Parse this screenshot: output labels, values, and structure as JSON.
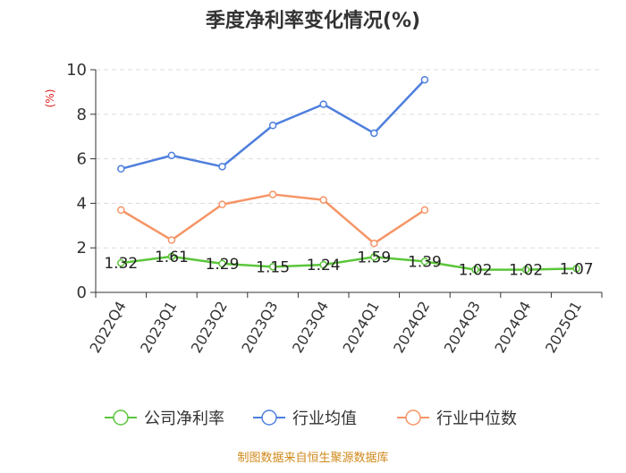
{
  "colors": {
    "company": "#5bc63b",
    "industry_avg": "#4e7fdd",
    "industry_median": "#f59566",
    "grid": "#dddddd",
    "axis": "#333333",
    "unit": "#e02020",
    "source": "#d0891a"
  },
  "chart_data": {
    "type": "line",
    "title": "季度净利率变化情况(%)",
    "ylabel": "(%)",
    "xlabel": "",
    "ylim": [
      0,
      10
    ],
    "yticks": [
      "0",
      "2",
      "4",
      "6",
      "8",
      "10"
    ],
    "grid": "horizontal dashed",
    "legend_position": "bottom",
    "categories": [
      "2022Q4",
      "2023Q1",
      "2023Q2",
      "2023Q3",
      "2023Q4",
      "2024Q1",
      "2024Q2",
      "2024Q3",
      "2024Q4",
      "2025Q1"
    ],
    "series": [
      {
        "name": "公司净利率",
        "color": "#5bc63b",
        "values": [
          1.32,
          1.61,
          1.29,
          1.15,
          1.24,
          1.59,
          1.39,
          1.02,
          1.02,
          1.07
        ],
        "labels": [
          "1.32",
          "1.61",
          "1.29",
          "1.15",
          "1.24",
          "1.59",
          "1.39",
          "1.02",
          "1.02",
          "1.07"
        ]
      },
      {
        "name": "行业均值",
        "color": "#4e7fdd",
        "values": [
          5.55,
          6.15,
          5.65,
          7.5,
          8.45,
          7.15,
          9.55,
          null,
          null,
          null
        ]
      },
      {
        "name": "行业中位数",
        "color": "#f59566",
        "values": [
          3.7,
          2.35,
          3.95,
          4.4,
          4.15,
          2.2,
          3.7,
          null,
          null,
          null
        ]
      }
    ]
  },
  "footer": {
    "source": "制图数据来自恒生聚源数据库"
  }
}
